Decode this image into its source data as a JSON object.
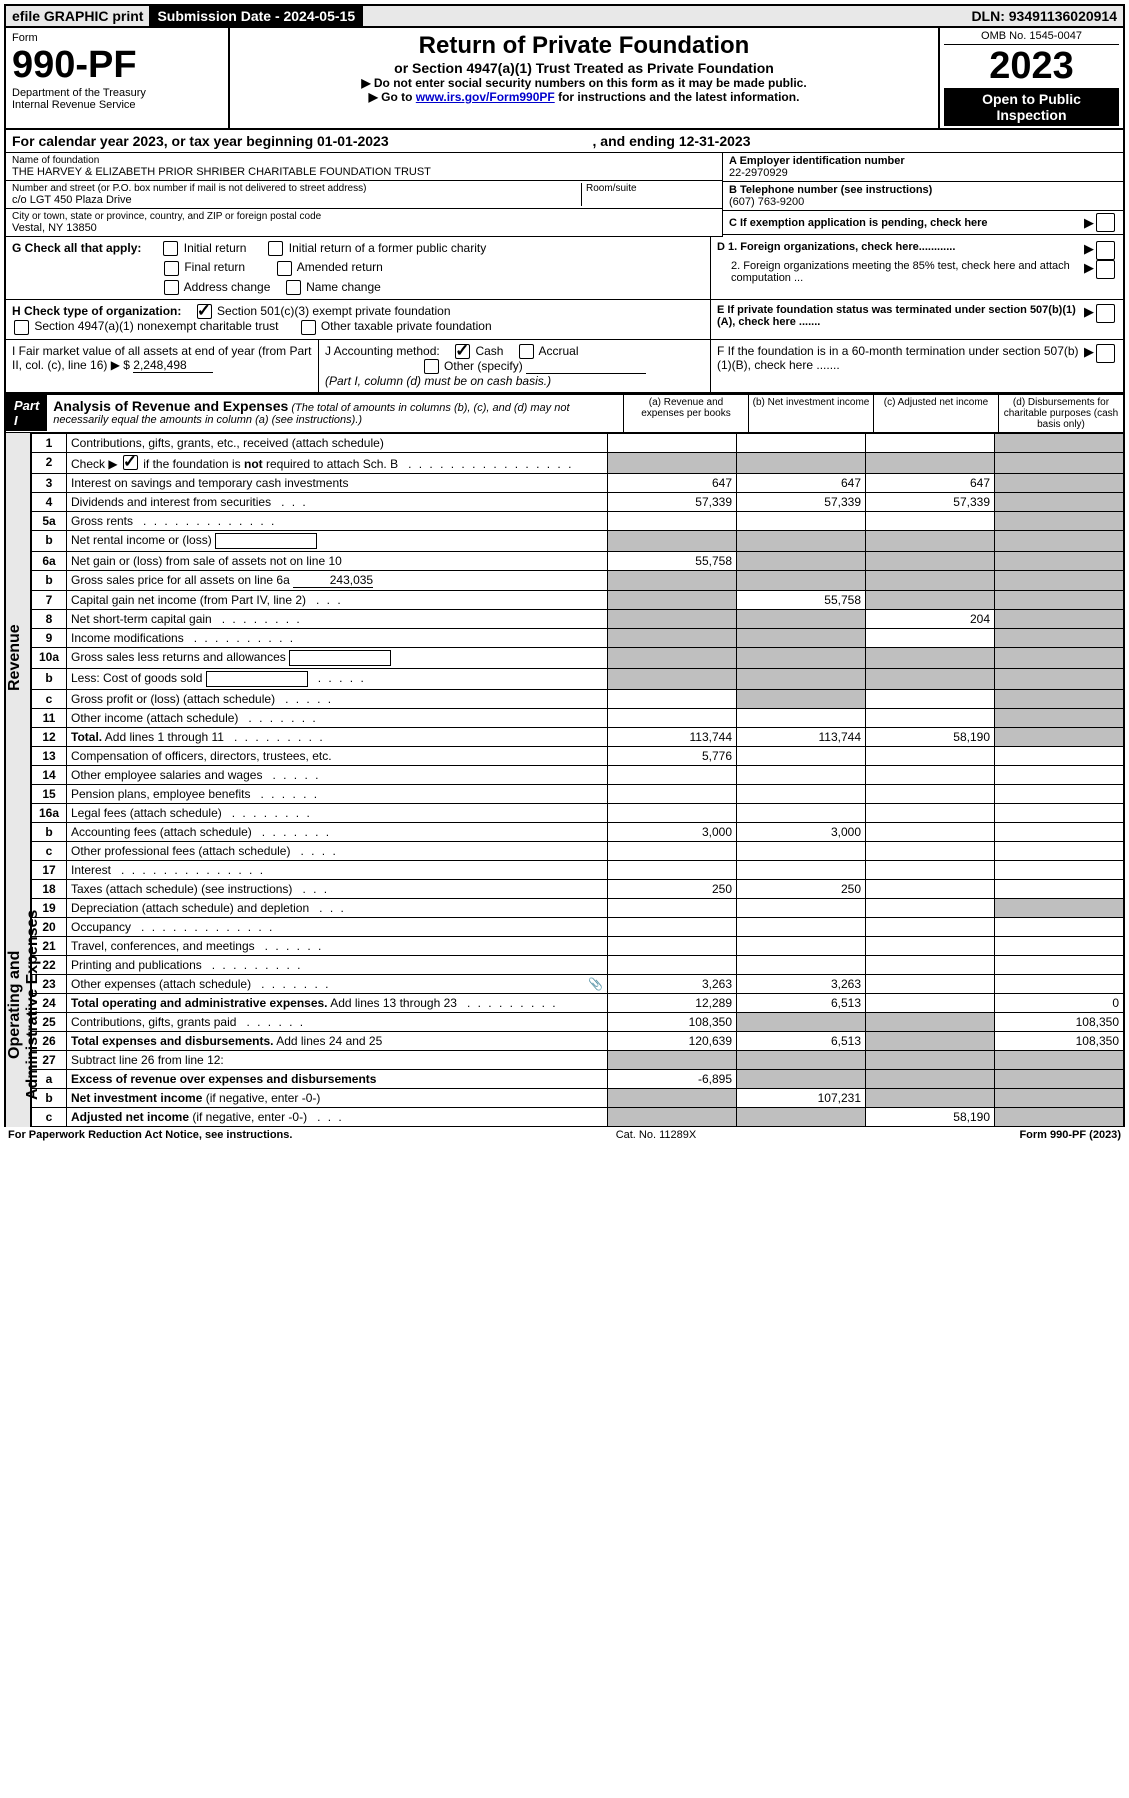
{
  "topbar": {
    "efile": "efile GRAPHIC print",
    "submission_label": "Submission Date - 2024-05-15",
    "dln": "DLN: 93491136020914"
  },
  "header": {
    "form_word": "Form",
    "form_number": "990-PF",
    "dept": "Department of the Treasury",
    "irs": "Internal Revenue Service",
    "title": "Return of Private Foundation",
    "subtitle": "or Section 4947(a)(1) Trust Treated as Private Foundation",
    "instr1": "▶ Do not enter social security numbers on this form as it may be made public.",
    "instr2_prefix": "▶ Go to ",
    "instr2_link": "www.irs.gov/Form990PF",
    "instr2_suffix": " for instructions and the latest information.",
    "omb": "OMB No. 1545-0047",
    "year": "2023",
    "open": "Open to Public Inspection"
  },
  "calendar": {
    "line": "For calendar year 2023, or tax year beginning 01-01-2023",
    "ending": ", and ending 12-31-2023"
  },
  "info": {
    "name_label": "Name of foundation",
    "name": "THE HARVEY & ELIZABETH PRIOR SHRIBER CHARITABLE FOUNDATION TRUST",
    "addr_label": "Number and street (or P.O. box number if mail is not delivered to street address)",
    "addr": "c/o LGT 450 Plaza Drive",
    "room_label": "Room/suite",
    "city_label": "City or town, state or province, country, and ZIP or foreign postal code",
    "city": "Vestal, NY  13850",
    "ein_label": "A Employer identification number",
    "ein": "22-2970929",
    "phone_label": "B Telephone number (see instructions)",
    "phone": "(607) 763-9200",
    "c_label": "C If exemption application is pending, check here",
    "d1_label": "D 1. Foreign organizations, check here............",
    "d2_label": "2. Foreign organizations meeting the 85% test, check here and attach computation ...",
    "e_label": "E  If private foundation status was terminated under section 507(b)(1)(A), check here .......",
    "f_label": "F  If the foundation is in a 60-month termination under section 507(b)(1)(B), check here ......."
  },
  "checks": {
    "g_label": "G Check all that apply:",
    "initial": "Initial return",
    "initial_former": "Initial return of a former public charity",
    "final": "Final return",
    "amended": "Amended return",
    "address": "Address change",
    "name_change": "Name change",
    "h_label": "H Check type of organization:",
    "h_501c3": "Section 501(c)(3) exempt private foundation",
    "h_4947": "Section 4947(a)(1) nonexempt charitable trust",
    "h_other": "Other taxable private foundation",
    "i_label": "I Fair market value of all assets at end of year (from Part II, col. (c), line 16) ▶ $",
    "i_value": "2,248,498",
    "j_label": "J Accounting method:",
    "j_cash": "Cash",
    "j_accrual": "Accrual",
    "j_other": "Other (specify)",
    "j_note": "(Part I, column (d) must be on cash basis.)"
  },
  "part1": {
    "label": "Part I",
    "title": "Analysis of Revenue and Expenses",
    "subtitle": "(The total of amounts in columns (b), (c), and (d) may not necessarily equal the amounts in column (a) (see instructions).)",
    "col_a": "(a)   Revenue and expenses per books",
    "col_b": "(b)   Net investment income",
    "col_c": "(c)   Adjusted net income",
    "col_d": "(d)   Disbursements for charitable purposes (cash basis only)"
  },
  "side_labels": {
    "revenue": "Revenue",
    "expenses": "Operating and Administrative Expenses"
  },
  "rows": [
    {
      "n": "1",
      "desc": "Contributions, gifts, grants, etc., received (attach schedule)",
      "a": "",
      "b": "",
      "c": "",
      "d": "",
      "shade": [
        "d"
      ]
    },
    {
      "n": "2",
      "desc": "Check ▶ ☑ if the foundation is not required to attach Sch. B",
      "dots": ". . . . . . . . . . . . . . . .",
      "a": "",
      "b": "",
      "c": "",
      "d": "",
      "shade": [
        "a",
        "b",
        "c",
        "d"
      ],
      "bold_not": true
    },
    {
      "n": "3",
      "desc": "Interest on savings and temporary cash investments",
      "a": "647",
      "b": "647",
      "c": "647",
      "d": "",
      "shade": [
        "d"
      ]
    },
    {
      "n": "4",
      "desc": "Dividends and interest from securities",
      "dots": ". . .",
      "a": "57,339",
      "b": "57,339",
      "c": "57,339",
      "d": "",
      "shade": [
        "d"
      ]
    },
    {
      "n": "5a",
      "desc": "Gross rents",
      "dots": ". . . . . . . . . . . . .",
      "a": "",
      "b": "",
      "c": "",
      "d": "",
      "shade": [
        "d"
      ]
    },
    {
      "n": "b",
      "desc": "Net rental income or (loss)",
      "inline": true,
      "a": "",
      "b": "",
      "c": "",
      "d": "",
      "shade": [
        "a",
        "b",
        "c",
        "d"
      ]
    },
    {
      "n": "6a",
      "desc": "Net gain or (loss) from sale of assets not on line 10",
      "a": "55,758",
      "b": "",
      "c": "",
      "d": "",
      "shade": [
        "b",
        "c",
        "d"
      ]
    },
    {
      "n": "b",
      "desc": "Gross sales price for all assets on line 6a",
      "inline_val": "243,035",
      "a": "",
      "b": "",
      "c": "",
      "d": "",
      "shade": [
        "a",
        "b",
        "c",
        "d"
      ]
    },
    {
      "n": "7",
      "desc": "Capital gain net income (from Part IV, line 2)",
      "dots": ". . .",
      "a": "",
      "b": "55,758",
      "c": "",
      "d": "",
      "shade": [
        "a",
        "c",
        "d"
      ]
    },
    {
      "n": "8",
      "desc": "Net short-term capital gain",
      "dots": ". . . . . . . .",
      "a": "",
      "b": "",
      "c": "204",
      "d": "",
      "shade": [
        "a",
        "b",
        "d"
      ]
    },
    {
      "n": "9",
      "desc": "Income modifications",
      "dots": ". . . . . . . . . .",
      "a": "",
      "b": "",
      "c": "",
      "d": "",
      "shade": [
        "a",
        "b",
        "d"
      ]
    },
    {
      "n": "10a",
      "desc": "Gross sales less returns and allowances",
      "inline": true,
      "a": "",
      "b": "",
      "c": "",
      "d": "",
      "shade": [
        "a",
        "b",
        "c",
        "d"
      ]
    },
    {
      "n": "b",
      "desc": "Less: Cost of goods sold",
      "dots": ". . . . .",
      "inline": true,
      "a": "",
      "b": "",
      "c": "",
      "d": "",
      "shade": [
        "a",
        "b",
        "c",
        "d"
      ]
    },
    {
      "n": "c",
      "desc": "Gross profit or (loss) (attach schedule)",
      "dots": ". . . . .",
      "a": "",
      "b": "",
      "c": "",
      "d": "",
      "shade": [
        "b",
        "d"
      ]
    },
    {
      "n": "11",
      "desc": "Other income (attach schedule)",
      "dots": ". . . . . . .",
      "a": "",
      "b": "",
      "c": "",
      "d": "",
      "shade": [
        "d"
      ]
    },
    {
      "n": "12",
      "desc": "Total.",
      "desc2": " Add lines 1 through 11",
      "dots": ". . . . . . . . .",
      "bold": true,
      "a": "113,744",
      "b": "113,744",
      "c": "58,190",
      "d": "",
      "shade": [
        "d"
      ]
    },
    {
      "n": "13",
      "desc": "Compensation of officers, directors, trustees, etc.",
      "a": "5,776",
      "b": "",
      "c": "",
      "d": ""
    },
    {
      "n": "14",
      "desc": "Other employee salaries and wages",
      "dots": ". . . . .",
      "a": "",
      "b": "",
      "c": "",
      "d": ""
    },
    {
      "n": "15",
      "desc": "Pension plans, employee benefits",
      "dots": ". . . . . .",
      "a": "",
      "b": "",
      "c": "",
      "d": ""
    },
    {
      "n": "16a",
      "desc": "Legal fees (attach schedule)",
      "dots": ". . . . . . . .",
      "a": "",
      "b": "",
      "c": "",
      "d": ""
    },
    {
      "n": "b",
      "desc": "Accounting fees (attach schedule)",
      "dots": ". . . . . . .",
      "a": "3,000",
      "b": "3,000",
      "c": "",
      "d": ""
    },
    {
      "n": "c",
      "desc": "Other professional fees (attach schedule)",
      "dots": ". . . .",
      "a": "",
      "b": "",
      "c": "",
      "d": ""
    },
    {
      "n": "17",
      "desc": "Interest",
      "dots": ". . . . . . . . . . . . . .",
      "a": "",
      "b": "",
      "c": "",
      "d": ""
    },
    {
      "n": "18",
      "desc": "Taxes (attach schedule) (see instructions)",
      "dots": ". . .",
      "a": "250",
      "b": "250",
      "c": "",
      "d": ""
    },
    {
      "n": "19",
      "desc": "Depreciation (attach schedule) and depletion",
      "dots": ". . .",
      "a": "",
      "b": "",
      "c": "",
      "d": "",
      "shade": [
        "d"
      ]
    },
    {
      "n": "20",
      "desc": "Occupancy",
      "dots": ". . . . . . . . . . . . .",
      "a": "",
      "b": "",
      "c": "",
      "d": ""
    },
    {
      "n": "21",
      "desc": "Travel, conferences, and meetings",
      "dots": ". . . . . .",
      "a": "",
      "b": "",
      "c": "",
      "d": ""
    },
    {
      "n": "22",
      "desc": "Printing and publications",
      "dots": ". . . . . . . . .",
      "a": "",
      "b": "",
      "c": "",
      "d": ""
    },
    {
      "n": "23",
      "desc": "Other expenses (attach schedule)",
      "dots": ". . . . . . .",
      "icon": "📎",
      "a": "3,263",
      "b": "3,263",
      "c": "",
      "d": ""
    },
    {
      "n": "24",
      "desc": "Total operating and administrative expenses.",
      "desc2": " Add lines 13 through 23",
      "dots": ". . . . . . . . .",
      "bold": true,
      "a": "12,289",
      "b": "6,513",
      "c": "",
      "d": "0"
    },
    {
      "n": "25",
      "desc": "Contributions, gifts, grants paid",
      "dots": ". . . . . .",
      "a": "108,350",
      "b": "",
      "c": "",
      "d": "108,350",
      "shade": [
        "b",
        "c"
      ]
    },
    {
      "n": "26",
      "desc": "Total expenses and disbursements.",
      "desc2": " Add lines 24 and 25",
      "bold": true,
      "a": "120,639",
      "b": "6,513",
      "c": "",
      "d": "108,350",
      "shade": [
        "c"
      ]
    },
    {
      "n": "27",
      "desc": "Subtract line 26 from line 12:",
      "a": "",
      "b": "",
      "c": "",
      "d": "",
      "shade": [
        "a",
        "b",
        "c",
        "d"
      ]
    },
    {
      "n": "a",
      "desc": "Excess of revenue over expenses and disbursements",
      "bold": true,
      "a": "-6,895",
      "b": "",
      "c": "",
      "d": "",
      "shade": [
        "b",
        "c",
        "d"
      ]
    },
    {
      "n": "b",
      "desc": "Net investment income",
      "desc2": " (if negative, enter -0-)",
      "bold": true,
      "a": "",
      "b": "107,231",
      "c": "",
      "d": "",
      "shade": [
        "a",
        "c",
        "d"
      ]
    },
    {
      "n": "c",
      "desc": "Adjusted net income",
      "desc2": " (if negative, enter -0-)",
      "dots": ". . .",
      "bold": true,
      "a": "",
      "b": "",
      "c": "58,190",
      "d": "",
      "shade": [
        "a",
        "b",
        "d"
      ]
    }
  ],
  "footer": {
    "left": "For Paperwork Reduction Act Notice, see instructions.",
    "center": "Cat. No. 11289X",
    "right": "Form 990-PF (2023)"
  }
}
